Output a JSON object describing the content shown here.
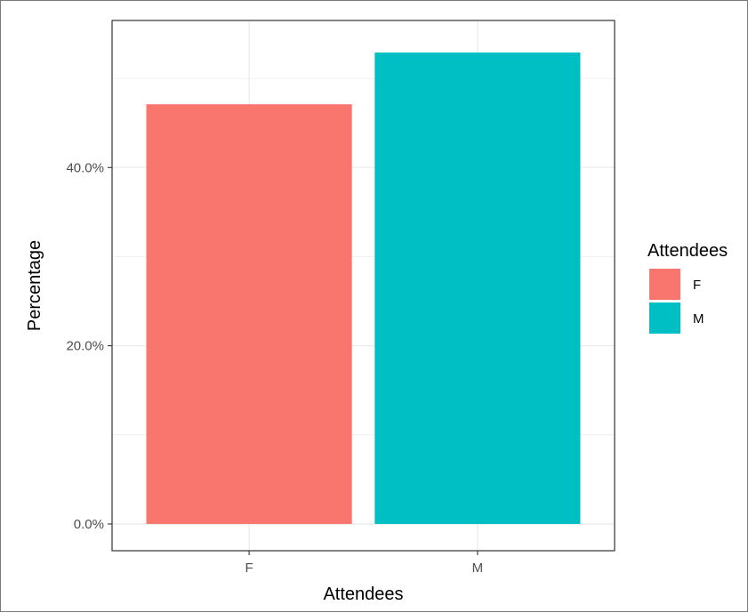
{
  "chart_data": {
    "type": "bar",
    "categories": [
      "F",
      "M"
    ],
    "values": [
      47.1,
      52.9
    ],
    "value_format": "percent",
    "xlabel": "Attendees",
    "ylabel": "Percentage",
    "ylim": [
      -3.0,
      56.5
    ],
    "yticks": [
      0,
      20,
      40
    ],
    "ytick_labels": [
      "0.0%",
      "20.0%",
      "40.0%"
    ],
    "grid": true,
    "legend": {
      "title": "Attendees",
      "placement": "right",
      "entries": [
        "F",
        "M"
      ]
    },
    "colors": {
      "F": "#F8766D",
      "M": "#00BFC4"
    },
    "panel_border_color": "#333333",
    "grid_color": "#ebebeb"
  }
}
